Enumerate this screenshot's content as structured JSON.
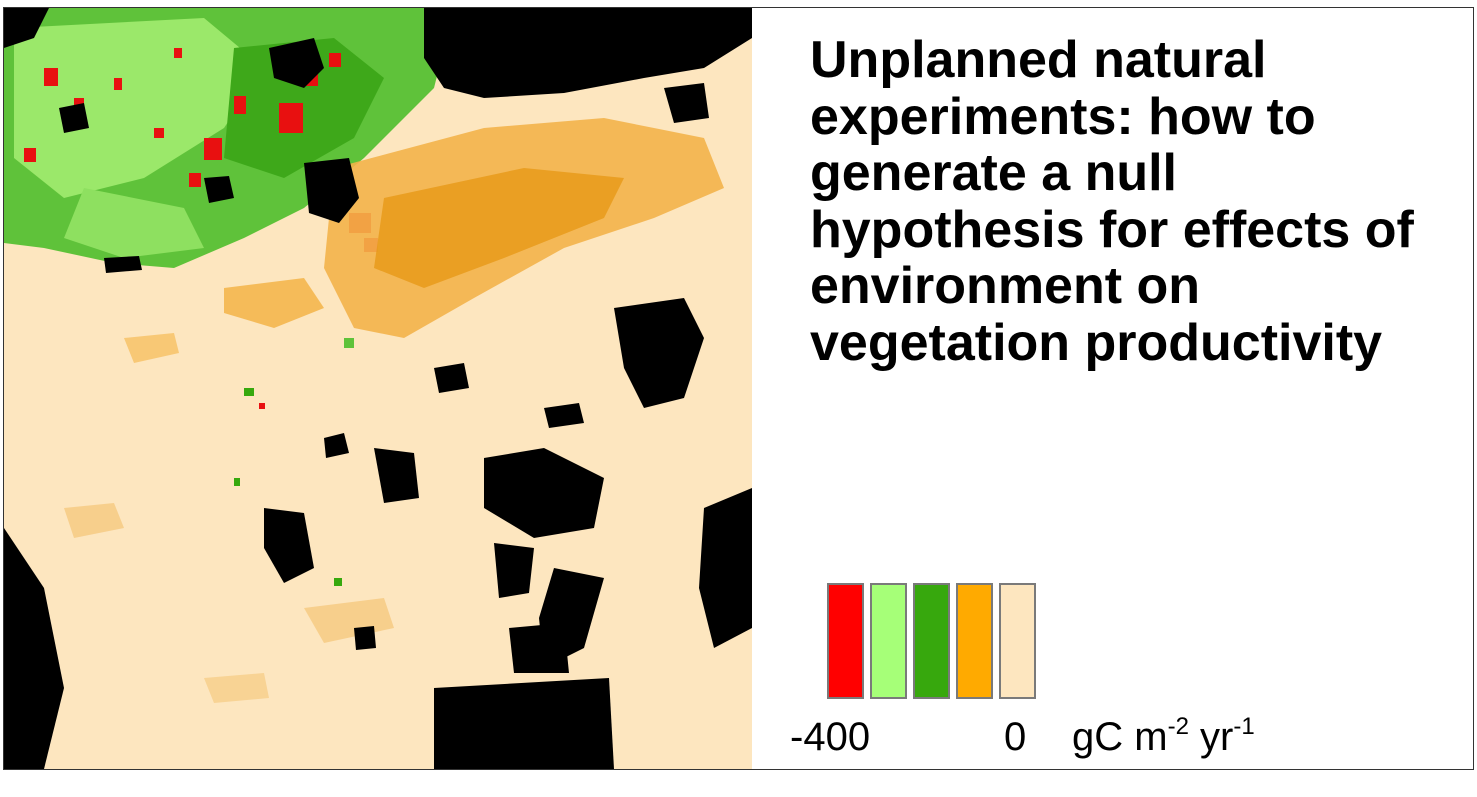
{
  "title": "Unplanned natural experiments: how to generate a null hypothesis for effects of environment on vegetation productivity",
  "legend": {
    "colors": [
      "#ff0000",
      "#a6ff78",
      "#37a80d",
      "#ffaa00",
      "#fde6bf"
    ],
    "min_label": "-400",
    "max_label": "0",
    "units": {
      "base1": "gC m",
      "exp1": "-2",
      "base2": " yr",
      "exp2": "-1"
    }
  },
  "map": {
    "background_color": "#fde6bf",
    "water_color": "#000000"
  }
}
